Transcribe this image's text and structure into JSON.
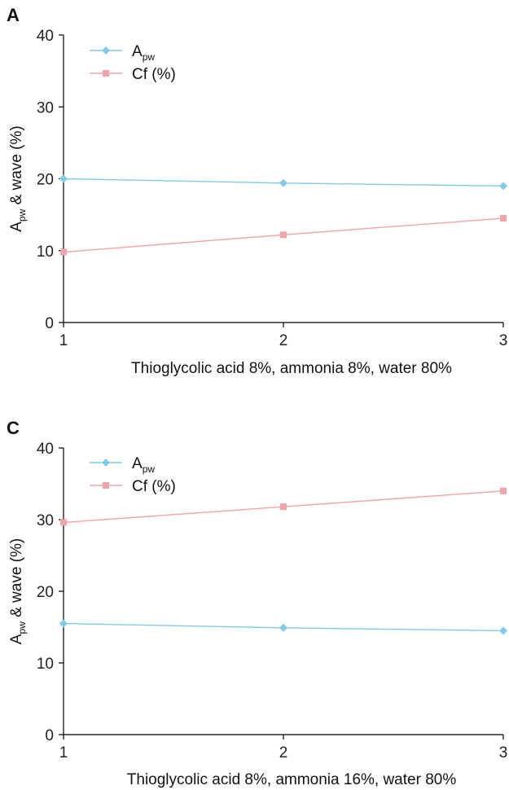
{
  "chart_data": [
    {
      "type": "line",
      "panel_label": "A",
      "xlabel": "Thioglycolic acid 8%, ammonia 8%, water 80%",
      "ylabel": {
        "main": "A",
        "sub": "pw",
        "rest": " & wave (%)"
      },
      "x": [
        1,
        2,
        3
      ],
      "xticks": [
        "1",
        "2",
        "3"
      ],
      "yticks": [
        "0",
        "10",
        "20",
        "30",
        "40"
      ],
      "ylim": [
        0,
        40
      ],
      "legend_position": "top-left",
      "series": [
        {
          "name": {
            "main": "A",
            "sub": "pw"
          },
          "marker": "diamond",
          "color": "#7fcbe8",
          "values": [
            20.0,
            19.4,
            19.0
          ]
        },
        {
          "name": {
            "main": "Cf (%)",
            "sub": ""
          },
          "marker": "square",
          "color": "#f2a3a8",
          "values": [
            9.8,
            12.2,
            14.5
          ]
        }
      ]
    },
    {
      "type": "line",
      "panel_label": "C",
      "xlabel": "Thioglycolic acid 8%, ammonia 16%, water 80%",
      "ylabel": {
        "main": "A",
        "sub": "pw",
        "rest": " & wave (%)"
      },
      "x": [
        1,
        2,
        3
      ],
      "xticks": [
        "1",
        "2",
        "3"
      ],
      "yticks": [
        "0",
        "10",
        "20",
        "30",
        "40"
      ],
      "ylim": [
        0,
        40
      ],
      "legend_position": "top-left",
      "series": [
        {
          "name": {
            "main": "A",
            "sub": "pw"
          },
          "marker": "diamond",
          "color": "#7fcbe8",
          "values": [
            15.5,
            14.9,
            14.5
          ]
        },
        {
          "name": {
            "main": "Cf (%)",
            "sub": ""
          },
          "marker": "square",
          "color": "#f2a3a8",
          "values": [
            29.6,
            31.8,
            34.0
          ]
        }
      ]
    }
  ]
}
